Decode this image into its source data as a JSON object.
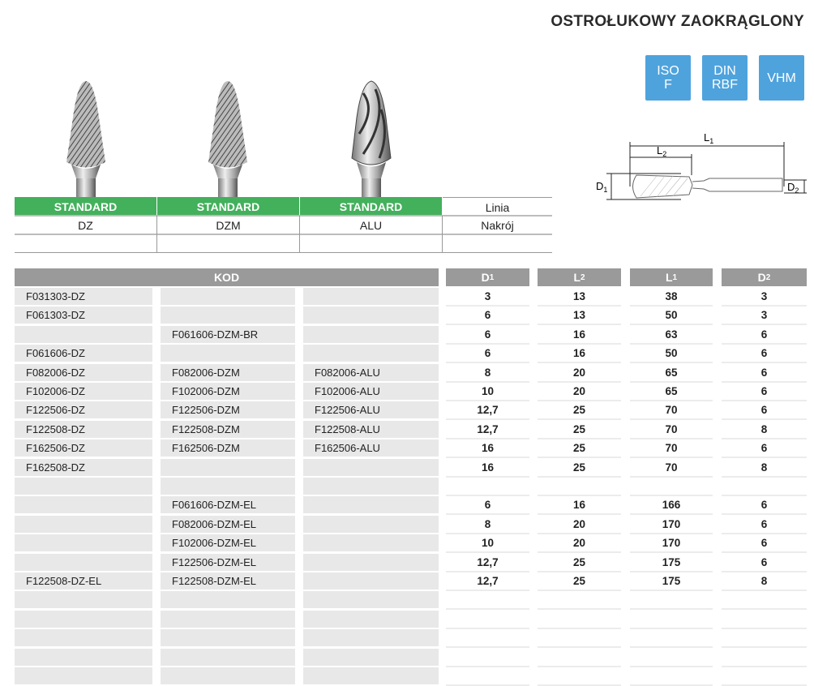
{
  "title": "OSTROŁUKOWY ZAOKRĄGLONY",
  "badges": [
    {
      "label": "ISO\nF"
    },
    {
      "label": "DIN\nRBF"
    },
    {
      "label": "VHM"
    }
  ],
  "badge_color": "#4ea3dd",
  "diagram": {
    "L1": "L",
    "L1_sub": "1",
    "L2": "L",
    "L2_sub": "2",
    "D1": "D",
    "D1_sub": "1",
    "D2": "D",
    "D2_sub": "2"
  },
  "lines": {
    "accent": "#43b05c",
    "headers": [
      "STANDARD",
      "STANDARD",
      "STANDARD",
      "Linia"
    ],
    "types": [
      "DZ",
      "DZM",
      "ALU",
      "Nakrój"
    ]
  },
  "table": {
    "kod_header": "KOD",
    "dim_headers": [
      {
        "l": "D",
        "s": "1"
      },
      {
        "l": "L",
        "s": "2"
      },
      {
        "l": "L",
        "s": "1"
      },
      {
        "l": "D",
        "s": "2"
      }
    ],
    "rows": [
      [
        "F031303-DZ",
        "",
        "",
        "3",
        "13",
        "38",
        "3"
      ],
      [
        "F061303-DZ",
        "",
        "",
        "6",
        "13",
        "50",
        "3"
      ],
      [
        "",
        "F061606-DZM-BR",
        "",
        "6",
        "16",
        "63",
        "6"
      ],
      [
        "F061606-DZ",
        "",
        "",
        "6",
        "16",
        "50",
        "6"
      ],
      [
        "F082006-DZ",
        "F082006-DZM",
        "F082006-ALU",
        "8",
        "20",
        "65",
        "6"
      ],
      [
        "F102006-DZ",
        "F102006-DZM",
        "F102006-ALU",
        "10",
        "20",
        "65",
        "6"
      ],
      [
        "F122506-DZ",
        "F122506-DZM",
        "F122506-ALU",
        "12,7",
        "25",
        "70",
        "6"
      ],
      [
        "F122508-DZ",
        "F122508-DZM",
        "F122508-ALU",
        "12,7",
        "25",
        "70",
        "8"
      ],
      [
        "F162506-DZ",
        "F162506-DZM",
        "F162506-ALU",
        "16",
        "25",
        "70",
        "6"
      ],
      [
        "F162508-DZ",
        "",
        "",
        "16",
        "25",
        "70",
        "8"
      ],
      [
        "",
        "",
        "",
        "",
        "",
        "",
        ""
      ],
      [
        "",
        "F061606-DZM-EL",
        "",
        "6",
        "16",
        "166",
        "6"
      ],
      [
        "",
        "F082006-DZM-EL",
        "",
        "8",
        "20",
        "170",
        "6"
      ],
      [
        "",
        "F102006-DZM-EL",
        "",
        "10",
        "20",
        "170",
        "6"
      ],
      [
        "",
        "F122506-DZM-EL",
        "",
        "12,7",
        "25",
        "175",
        "6"
      ],
      [
        "F122508-DZ-EL",
        "F122508-DZM-EL",
        "",
        "12,7",
        "25",
        "175",
        "8"
      ],
      [
        "",
        "",
        "",
        "",
        "",
        "",
        ""
      ],
      [
        "",
        "",
        "",
        "",
        "",
        "",
        ""
      ],
      [
        "",
        "",
        "",
        "",
        "",
        "",
        ""
      ],
      [
        "",
        "",
        "",
        "",
        "",
        "",
        ""
      ],
      [
        "",
        "",
        "",
        "",
        "",
        "",
        ""
      ]
    ]
  }
}
